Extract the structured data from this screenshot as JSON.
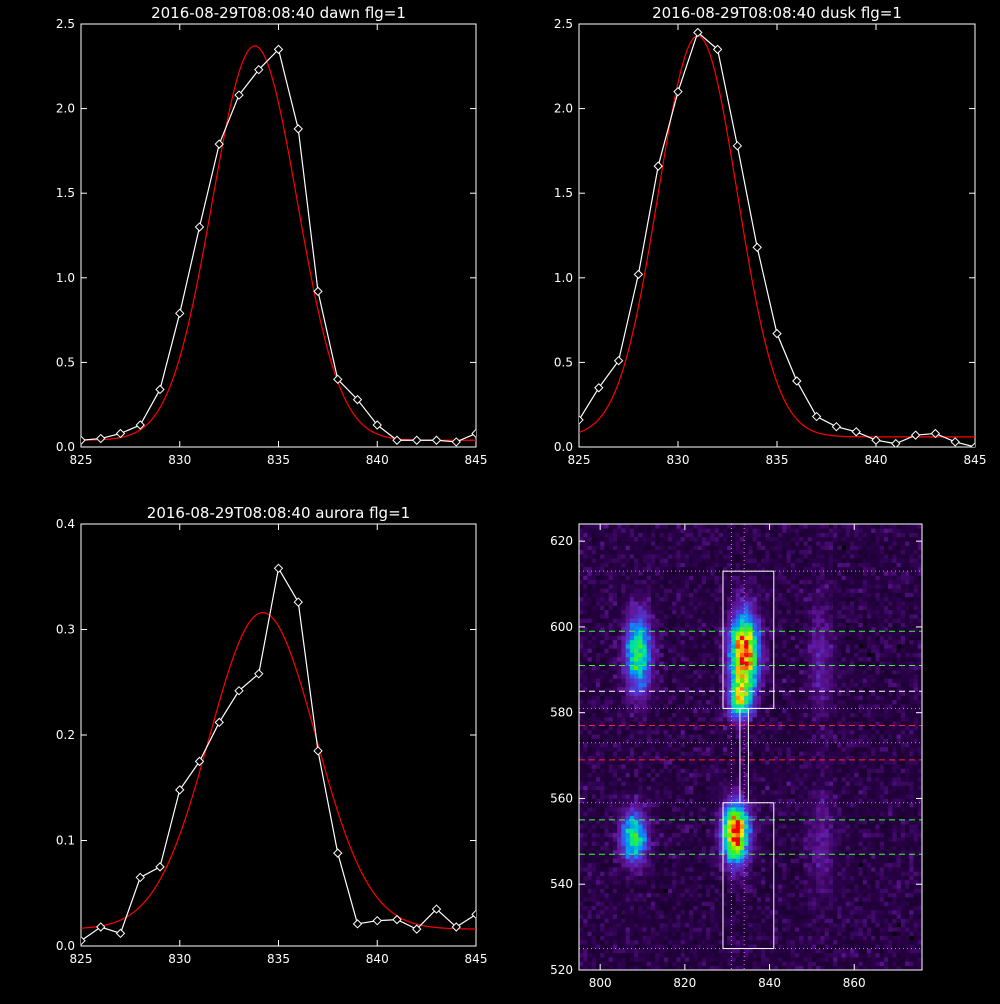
{
  "colors": {
    "background": "#000000",
    "axes": "#ffffff",
    "data_line": "#ffffff",
    "fit_line": "#ff0000"
  },
  "chart_data": [
    {
      "type": "line",
      "title": "2016-08-29T08:08:40 dawn flg=1",
      "xlim": [
        825,
        845
      ],
      "ylim": [
        0,
        2.5
      ],
      "xticks": [
        825,
        830,
        835,
        840,
        845
      ],
      "yticks": [
        0.0,
        0.5,
        1.0,
        1.5,
        2.0,
        2.5
      ],
      "xticklabels": [
        "825",
        "830",
        "835",
        "840",
        "845"
      ],
      "yticklabels": [
        "0.0",
        "0.5",
        "1.0",
        "1.5",
        "2.0",
        "2.5"
      ],
      "series": [
        {
          "style": "white-line-diamond-markers",
          "x": [
            825,
            826,
            827,
            828,
            829,
            830,
            831,
            832,
            833,
            834,
            835,
            836,
            837,
            838,
            839,
            840,
            841,
            842,
            843,
            844,
            845
          ],
          "y": [
            0.04,
            0.05,
            0.08,
            0.13,
            0.34,
            0.79,
            1.3,
            1.79,
            2.08,
            2.23,
            2.35,
            1.88,
            0.92,
            0.4,
            0.28,
            0.13,
            0.04,
            0.04,
            0.04,
            0.03,
            0.08
          ]
        },
        {
          "style": "red-gaussian-fit",
          "model": "gaussian",
          "amplitude": 2.33,
          "center": 833.8,
          "sigma": 2.15,
          "offset": 0.04
        }
      ]
    },
    {
      "type": "line",
      "title": "2016-08-29T08:08:40 dusk flg=1",
      "xlim": [
        825,
        845
      ],
      "ylim": [
        0,
        2.5
      ],
      "xticks": [
        825,
        830,
        835,
        840,
        845
      ],
      "yticks": [
        0.0,
        0.5,
        1.0,
        1.5,
        2.0,
        2.5
      ],
      "xticklabels": [
        "825",
        "830",
        "835",
        "840",
        "845"
      ],
      "yticklabels": [
        "0.0",
        "0.5",
        "1.0",
        "1.5",
        "2.0",
        "2.5"
      ],
      "series": [
        {
          "style": "white-line-diamond-markers",
          "x": [
            825,
            826,
            827,
            828,
            829,
            830,
            831,
            832,
            833,
            834,
            835,
            836,
            837,
            838,
            839,
            840,
            841,
            842,
            843,
            844,
            845
          ],
          "y": [
            0.16,
            0.35,
            0.51,
            1.02,
            1.66,
            2.1,
            2.45,
            2.35,
            1.78,
            1.18,
            0.67,
            0.39,
            0.18,
            0.12,
            0.09,
            0.04,
            0.02,
            0.07,
            0.08,
            0.03,
            0.0
          ]
        },
        {
          "style": "red-gaussian-fit",
          "model": "gaussian",
          "amplitude": 2.37,
          "center": 831.0,
          "sigma": 2.0,
          "offset": 0.06
        }
      ]
    },
    {
      "type": "line",
      "title": "2016-08-29T08:08:40 aurora flg=1",
      "xlim": [
        825,
        845
      ],
      "ylim": [
        0,
        0.4
      ],
      "xticks": [
        825,
        830,
        835,
        840,
        845
      ],
      "yticks": [
        0.0,
        0.1,
        0.2,
        0.3,
        0.4
      ],
      "xticklabels": [
        "825",
        "830",
        "835",
        "840",
        "845"
      ],
      "yticklabels": [
        "0.0",
        "0.1",
        "0.2",
        "0.3",
        "0.4"
      ],
      "series": [
        {
          "style": "white-line-diamond-markers",
          "x": [
            825,
            826,
            827,
            828,
            829,
            830,
            831,
            832,
            833,
            834,
            835,
            836,
            837,
            838,
            839,
            840,
            841,
            842,
            843,
            844,
            845
          ],
          "y": [
            0.005,
            0.018,
            0.012,
            0.065,
            0.075,
            0.148,
            0.175,
            0.212,
            0.242,
            0.258,
            0.358,
            0.326,
            0.185,
            0.088,
            0.021,
            0.024,
            0.025,
            0.016,
            0.035,
            0.018,
            0.03
          ]
        },
        {
          "style": "red-gaussian-fit",
          "model": "gaussian",
          "amplitude": 0.3,
          "center": 834.2,
          "sigma": 2.7,
          "offset": 0.016
        }
      ]
    },
    {
      "type": "heatmap",
      "title": "",
      "xlim": [
        795,
        876
      ],
      "ylim": [
        520,
        624
      ],
      "xticks": [
        800,
        820,
        840,
        860
      ],
      "yticks": [
        520,
        540,
        560,
        580,
        600,
        620
      ],
      "xticklabels": [
        "800",
        "820",
        "840",
        "860"
      ],
      "yticklabels": [
        "520",
        "540",
        "560",
        "580",
        "600",
        "620"
      ],
      "colormap": "rainbow-on-purple",
      "blobs": [
        {
          "x": 809,
          "y": 594,
          "sx": 2.0,
          "sy": 6.0,
          "amp": 0.55
        },
        {
          "x": 808,
          "y": 551,
          "sx": 2.0,
          "sy": 4.0,
          "amp": 0.55
        },
        {
          "x": 834,
          "y": 594,
          "sx": 2.2,
          "sy": 6.0,
          "amp": 0.95
        },
        {
          "x": 833,
          "y": 583,
          "sx": 1.8,
          "sy": 3.0,
          "amp": 0.55
        },
        {
          "x": 832,
          "y": 552,
          "sx": 2.0,
          "sy": 4.5,
          "amp": 1.0
        },
        {
          "x": 852,
          "y": 592,
          "sx": 2.0,
          "sy": 9.0,
          "amp": 0.12
        },
        {
          "x": 852,
          "y": 550,
          "sx": 2.0,
          "sy": 8.0,
          "amp": 0.1
        }
      ],
      "white_boxes": [
        {
          "x0": 829,
          "x1": 841,
          "y0": 581,
          "y1": 613
        },
        {
          "x0": 829,
          "x1": 841,
          "y0": 525,
          "y1": 559
        }
      ],
      "white_connector_x": [
        833,
        835
      ],
      "vertical_dotted_x": [
        831,
        834
      ],
      "hlines": [
        {
          "y": 613,
          "style": "magenta-dotted"
        },
        {
          "y": 599,
          "style": "green-dashed"
        },
        {
          "y": 591,
          "style": "green-dashed"
        },
        {
          "y": 585,
          "style": "white-dashed"
        },
        {
          "y": 581,
          "style": "magenta-dotted"
        },
        {
          "y": 577,
          "style": "red-dashed"
        },
        {
          "y": 573,
          "style": "magenta-dotted"
        },
        {
          "y": 569,
          "style": "red-dashed"
        },
        {
          "y": 559,
          "style": "magenta-dotted"
        },
        {
          "y": 555,
          "style": "green-dashed"
        },
        {
          "y": 547,
          "style": "green-dashed"
        },
        {
          "y": 525,
          "style": "magenta-dotted"
        }
      ]
    }
  ]
}
